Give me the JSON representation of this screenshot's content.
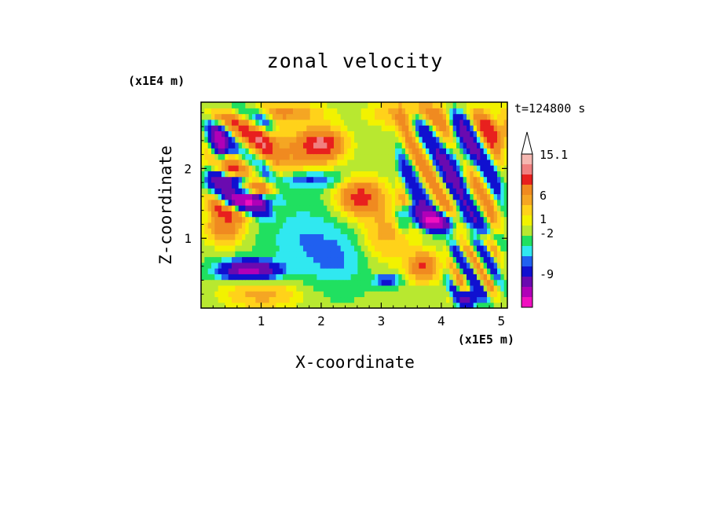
{
  "chart_data": {
    "type": "heatmap",
    "title": "zonal velocity",
    "xlabel": "X-coordinate",
    "ylabel": "Z-coordinate",
    "x_scale_label": "(x1E5 m)",
    "y_scale_label": "(x1E4 m)",
    "time_label": "t=124800 s",
    "xlim": [
      0,
      5.1
    ],
    "ylim": [
      0,
      2.95
    ],
    "x_ticks": [
      1,
      2,
      3,
      4,
      5
    ],
    "x_tick_labels": [
      "1",
      "2",
      "3",
      "4",
      "5"
    ],
    "y_ticks": [
      1,
      2
    ],
    "y_tick_labels": [
      "1",
      "2"
    ],
    "colorbar": {
      "levels": [
        "15.1",
        "6",
        "1",
        "-2",
        "-9"
      ],
      "colors": [
        "#f5b7b1",
        "#f08080",
        "#e8201e",
        "#f08a20",
        "#f5a623",
        "#ffd21a",
        "#f2f200",
        "#b8e830",
        "#20e060",
        "#30e8f0",
        "#2060f0",
        "#1010d0",
        "#6a0ab0",
        "#b000b8",
        "#f010c0"
      ],
      "extend": "max"
    },
    "field": {
      "nx": 90,
      "nz": 36,
      "features": [
        {
          "x": 2.0,
          "z": 2.35,
          "amp": 11,
          "sx": 0.35,
          "sz": 0.22
        },
        {
          "x": 1.0,
          "z": 2.2,
          "amp": 6,
          "sx": 0.8,
          "sz": 0.35
        },
        {
          "x": 2.65,
          "z": 1.6,
          "amp": 9,
          "sx": 0.35,
          "sz": 0.25
        },
        {
          "x": 3.7,
          "z": 0.6,
          "amp": 8,
          "sx": 0.25,
          "sz": 0.2
        },
        {
          "x": 0.4,
          "z": 1.2,
          "amp": 7,
          "sx": 0.3,
          "sz": 0.25
        },
        {
          "x": 4.9,
          "z": 2.6,
          "amp": 6,
          "sx": 0.3,
          "sz": 0.3
        },
        {
          "x": 3.1,
          "z": 1.1,
          "amp": 4,
          "sx": 0.4,
          "sz": 0.4
        },
        {
          "x": 1.0,
          "z": 0.2,
          "amp": 4,
          "sx": 0.6,
          "sz": 0.2
        },
        {
          "x": 1.7,
          "z": 1.0,
          "amp": -2,
          "sx": 0.6,
          "sz": 0.5
        },
        {
          "x": 2.3,
          "z": 0.7,
          "amp": -2,
          "sx": 0.5,
          "sz": 0.4
        },
        {
          "x": 0.8,
          "z": 0.55,
          "amp": -12,
          "sx": 0.45,
          "sz": 0.13
        },
        {
          "x": 0.85,
          "z": 1.55,
          "amp": -12,
          "sx": 0.35,
          "sz": 0.1
        },
        {
          "x": 0.6,
          "z": 1.85,
          "amp": -10,
          "sx": 0.35,
          "sz": 0.1
        },
        {
          "x": 0.3,
          "z": 2.3,
          "amp": -11,
          "sx": 0.15,
          "sz": 0.3
        },
        {
          "x": 3.85,
          "z": 1.25,
          "amp": -14,
          "sx": 0.4,
          "sz": 0.12
        },
        {
          "x": 3.5,
          "z": 1.4,
          "amp": -9,
          "sx": 0.2,
          "sz": 0.1
        },
        {
          "x": 4.45,
          "z": 0.15,
          "amp": -10,
          "sx": 0.15,
          "sz": 0.12
        },
        {
          "x": 3.1,
          "z": 0.4,
          "amp": -5,
          "sx": 0.2,
          "sz": 0.08
        },
        {
          "x": 1.75,
          "z": 1.85,
          "amp": -4,
          "sx": 0.6,
          "sz": 0.12
        },
        {
          "x": 4.3,
          "z": 2.2,
          "amp": -6,
          "sx": 0.25,
          "sz": 0.4
        },
        {
          "x": 3.5,
          "z": 2.8,
          "amp": 5,
          "sx": 0.6,
          "sz": 0.2
        },
        {
          "x": 1.4,
          "z": 2.8,
          "amp": 5,
          "sx": 0.6,
          "sz": 0.15
        }
      ],
      "waves": [
        {
          "x0": 0,
          "x1": 1.3,
          "z0": 1.2,
          "z1": 2.95,
          "amp": 7,
          "kx": 5.0,
          "kz": 9.0
        },
        {
          "x0": 3.2,
          "x1": 5.1,
          "z0": 1.0,
          "z1": 2.95,
          "amp": 6,
          "kx": 9.0,
          "kz": 6.0
        },
        {
          "x0": 4.0,
          "x1": 5.1,
          "z0": 0.0,
          "z1": 1.1,
          "amp": 5,
          "kx": 14.0,
          "kz": 10.0
        }
      ]
    }
  }
}
